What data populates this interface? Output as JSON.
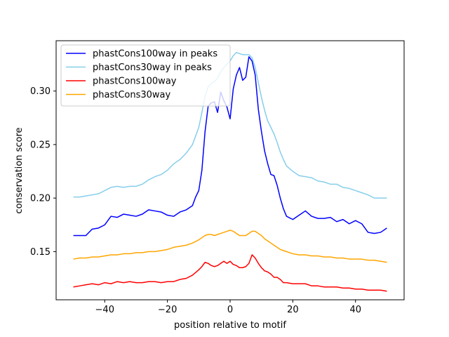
{
  "chart_data": {
    "type": "line",
    "xlabel": "position relative to motif",
    "ylabel": "conservation score",
    "xlim": [
      -55.5,
      55.5
    ],
    "ylim": [
      0.105,
      0.347
    ],
    "xticks": [
      -40,
      -20,
      0,
      20,
      40
    ],
    "xtick_labels": [
      "−40",
      "−20",
      "0",
      "20",
      "40"
    ],
    "yticks": [
      0.15,
      0.2,
      0.25,
      0.3
    ],
    "ytick_labels": [
      "0.15",
      "0.20",
      "0.25",
      "0.30"
    ],
    "legend_position": "top-left",
    "grid": false,
    "series": [
      {
        "name": "phastCons100way in peaks",
        "color": "#0000ff",
        "points": [
          [
            -50,
            0.165
          ],
          [
            -48,
            0.165
          ],
          [
            -46,
            0.165
          ],
          [
            -44,
            0.171
          ],
          [
            -42,
            0.172
          ],
          [
            -40,
            0.175
          ],
          [
            -38,
            0.183
          ],
          [
            -36,
            0.182
          ],
          [
            -34,
            0.185
          ],
          [
            -32,
            0.184
          ],
          [
            -30,
            0.183
          ],
          [
            -28,
            0.185
          ],
          [
            -26,
            0.189
          ],
          [
            -24,
            0.188
          ],
          [
            -22,
            0.187
          ],
          [
            -20,
            0.184
          ],
          [
            -18,
            0.183
          ],
          [
            -16,
            0.187
          ],
          [
            -14,
            0.189
          ],
          [
            -12,
            0.193
          ],
          [
            -11,
            0.201
          ],
          [
            -10,
            0.207
          ],
          [
            -9,
            0.226
          ],
          [
            -8,
            0.262
          ],
          [
            -7,
            0.286
          ],
          [
            -6,
            0.289
          ],
          [
            -5,
            0.29
          ],
          [
            -4,
            0.28
          ],
          [
            -3,
            0.299
          ],
          [
            -2,
            0.291
          ],
          [
            -1,
            0.285
          ],
          [
            0,
            0.274
          ],
          [
            1,
            0.302
          ],
          [
            2,
            0.315
          ],
          [
            3,
            0.322
          ],
          [
            4,
            0.31
          ],
          [
            5,
            0.313
          ],
          [
            6,
            0.332
          ],
          [
            7,
            0.328
          ],
          [
            8,
            0.315
          ],
          [
            9,
            0.283
          ],
          [
            10,
            0.262
          ],
          [
            11,
            0.244
          ],
          [
            12,
            0.232
          ],
          [
            13,
            0.222
          ],
          [
            14,
            0.221
          ],
          [
            15,
            0.212
          ],
          [
            16,
            0.2
          ],
          [
            17,
            0.19
          ],
          [
            18,
            0.183
          ],
          [
            20,
            0.18
          ],
          [
            22,
            0.184
          ],
          [
            24,
            0.188
          ],
          [
            26,
            0.183
          ],
          [
            28,
            0.181
          ],
          [
            30,
            0.181
          ],
          [
            32,
            0.182
          ],
          [
            34,
            0.178
          ],
          [
            36,
            0.18
          ],
          [
            38,
            0.176
          ],
          [
            40,
            0.179
          ],
          [
            42,
            0.176
          ],
          [
            44,
            0.168
          ],
          [
            46,
            0.167
          ],
          [
            48,
            0.168
          ],
          [
            50,
            0.172
          ]
        ]
      },
      {
        "name": "phastCons30way in peaks",
        "color": "#87ceeb",
        "points": [
          [
            -50,
            0.201
          ],
          [
            -48,
            0.201
          ],
          [
            -46,
            0.202
          ],
          [
            -44,
            0.203
          ],
          [
            -42,
            0.204
          ],
          [
            -40,
            0.207
          ],
          [
            -38,
            0.21
          ],
          [
            -36,
            0.211
          ],
          [
            -34,
            0.21
          ],
          [
            -32,
            0.211
          ],
          [
            -30,
            0.211
          ],
          [
            -28,
            0.213
          ],
          [
            -26,
            0.217
          ],
          [
            -24,
            0.22
          ],
          [
            -22,
            0.222
          ],
          [
            -20,
            0.226
          ],
          [
            -18,
            0.232
          ],
          [
            -16,
            0.236
          ],
          [
            -14,
            0.242
          ],
          [
            -12,
            0.25
          ],
          [
            -10,
            0.266
          ],
          [
            -9,
            0.28
          ],
          [
            -8,
            0.295
          ],
          [
            -7,
            0.304
          ],
          [
            -6,
            0.307
          ],
          [
            -5,
            0.309
          ],
          [
            -4,
            0.312
          ],
          [
            -3,
            0.318
          ],
          [
            -2,
            0.322
          ],
          [
            -1,
            0.325
          ],
          [
            0,
            0.328
          ],
          [
            1,
            0.333
          ],
          [
            2,
            0.336
          ],
          [
            3,
            0.335
          ],
          [
            4,
            0.334
          ],
          [
            5,
            0.334
          ],
          [
            6,
            0.334
          ],
          [
            7,
            0.331
          ],
          [
            8,
            0.322
          ],
          [
            9,
            0.308
          ],
          [
            10,
            0.294
          ],
          [
            11,
            0.282
          ],
          [
            12,
            0.272
          ],
          [
            13,
            0.266
          ],
          [
            14,
            0.26
          ],
          [
            15,
            0.252
          ],
          [
            16,
            0.243
          ],
          [
            17,
            0.236
          ],
          [
            18,
            0.23
          ],
          [
            20,
            0.225
          ],
          [
            22,
            0.221
          ],
          [
            24,
            0.22
          ],
          [
            26,
            0.219
          ],
          [
            28,
            0.216
          ],
          [
            30,
            0.215
          ],
          [
            32,
            0.213
          ],
          [
            34,
            0.213
          ],
          [
            36,
            0.21
          ],
          [
            38,
            0.209
          ],
          [
            40,
            0.207
          ],
          [
            42,
            0.205
          ],
          [
            44,
            0.203
          ],
          [
            46,
            0.2
          ],
          [
            48,
            0.2
          ],
          [
            50,
            0.2
          ]
        ]
      },
      {
        "name": "phastCons100way",
        "color": "#ff0000",
        "points": [
          [
            -50,
            0.117
          ],
          [
            -48,
            0.118
          ],
          [
            -46,
            0.119
          ],
          [
            -44,
            0.12
          ],
          [
            -42,
            0.119
          ],
          [
            -40,
            0.121
          ],
          [
            -38,
            0.12
          ],
          [
            -36,
            0.122
          ],
          [
            -34,
            0.121
          ],
          [
            -32,
            0.122
          ],
          [
            -30,
            0.121
          ],
          [
            -28,
            0.121
          ],
          [
            -26,
            0.122
          ],
          [
            -24,
            0.122
          ],
          [
            -22,
            0.121
          ],
          [
            -20,
            0.122
          ],
          [
            -18,
            0.122
          ],
          [
            -16,
            0.124
          ],
          [
            -14,
            0.125
          ],
          [
            -12,
            0.128
          ],
          [
            -10,
            0.133
          ],
          [
            -9,
            0.136
          ],
          [
            -8,
            0.14
          ],
          [
            -7,
            0.139
          ],
          [
            -6,
            0.137
          ],
          [
            -5,
            0.136
          ],
          [
            -4,
            0.137
          ],
          [
            -3,
            0.139
          ],
          [
            -2,
            0.141
          ],
          [
            -1,
            0.139
          ],
          [
            0,
            0.141
          ],
          [
            1,
            0.138
          ],
          [
            2,
            0.137
          ],
          [
            3,
            0.135
          ],
          [
            4,
            0.135
          ],
          [
            5,
            0.136
          ],
          [
            6,
            0.139
          ],
          [
            7,
            0.147
          ],
          [
            8,
            0.144
          ],
          [
            9,
            0.139
          ],
          [
            10,
            0.135
          ],
          [
            11,
            0.132
          ],
          [
            12,
            0.131
          ],
          [
            13,
            0.129
          ],
          [
            14,
            0.126
          ],
          [
            15,
            0.126
          ],
          [
            16,
            0.124
          ],
          [
            17,
            0.121
          ],
          [
            18,
            0.121
          ],
          [
            20,
            0.12
          ],
          [
            22,
            0.12
          ],
          [
            24,
            0.12
          ],
          [
            26,
            0.118
          ],
          [
            28,
            0.118
          ],
          [
            30,
            0.117
          ],
          [
            32,
            0.117
          ],
          [
            34,
            0.117
          ],
          [
            36,
            0.116
          ],
          [
            38,
            0.116
          ],
          [
            40,
            0.115
          ],
          [
            42,
            0.115
          ],
          [
            44,
            0.114
          ],
          [
            46,
            0.114
          ],
          [
            48,
            0.114
          ],
          [
            50,
            0.113
          ]
        ]
      },
      {
        "name": "phastCons30way",
        "color": "#ffa500",
        "points": [
          [
            -50,
            0.143
          ],
          [
            -48,
            0.144
          ],
          [
            -46,
            0.144
          ],
          [
            -44,
            0.145
          ],
          [
            -42,
            0.145
          ],
          [
            -40,
            0.146
          ],
          [
            -38,
            0.147
          ],
          [
            -36,
            0.147
          ],
          [
            -34,
            0.148
          ],
          [
            -32,
            0.148
          ],
          [
            -30,
            0.149
          ],
          [
            -28,
            0.149
          ],
          [
            -26,
            0.15
          ],
          [
            -24,
            0.15
          ],
          [
            -22,
            0.151
          ],
          [
            -20,
            0.152
          ],
          [
            -18,
            0.154
          ],
          [
            -16,
            0.155
          ],
          [
            -14,
            0.156
          ],
          [
            -12,
            0.158
          ],
          [
            -10,
            0.161
          ],
          [
            -9,
            0.163
          ],
          [
            -8,
            0.165
          ],
          [
            -7,
            0.166
          ],
          [
            -6,
            0.166
          ],
          [
            -5,
            0.165
          ],
          [
            -4,
            0.166
          ],
          [
            -3,
            0.167
          ],
          [
            -2,
            0.168
          ],
          [
            -1,
            0.169
          ],
          [
            0,
            0.17
          ],
          [
            1,
            0.169
          ],
          [
            2,
            0.167
          ],
          [
            3,
            0.165
          ],
          [
            4,
            0.165
          ],
          [
            5,
            0.165
          ],
          [
            6,
            0.167
          ],
          [
            7,
            0.169
          ],
          [
            8,
            0.169
          ],
          [
            9,
            0.167
          ],
          [
            10,
            0.165
          ],
          [
            11,
            0.162
          ],
          [
            12,
            0.16
          ],
          [
            13,
            0.158
          ],
          [
            14,
            0.156
          ],
          [
            15,
            0.154
          ],
          [
            16,
            0.152
          ],
          [
            17,
            0.151
          ],
          [
            18,
            0.15
          ],
          [
            20,
            0.148
          ],
          [
            22,
            0.147
          ],
          [
            24,
            0.147
          ],
          [
            26,
            0.146
          ],
          [
            28,
            0.146
          ],
          [
            30,
            0.145
          ],
          [
            32,
            0.145
          ],
          [
            34,
            0.144
          ],
          [
            36,
            0.144
          ],
          [
            38,
            0.143
          ],
          [
            40,
            0.143
          ],
          [
            42,
            0.143
          ],
          [
            44,
            0.142
          ],
          [
            46,
            0.142
          ],
          [
            48,
            0.141
          ],
          [
            50,
            0.14
          ]
        ]
      }
    ]
  }
}
